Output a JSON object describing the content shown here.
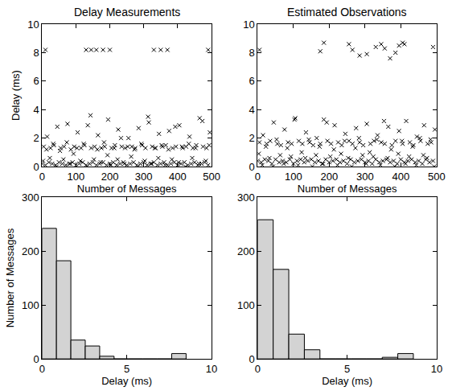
{
  "chart_data": [
    {
      "type": "scatter",
      "title": "Delay Measurements",
      "xlabel": "Number of Messages",
      "ylabel": "Delay (ms)",
      "x": [
        0,
        5,
        10,
        15,
        20,
        25,
        30,
        35,
        40,
        45,
        50,
        55,
        60,
        65,
        70,
        75,
        80,
        85,
        90,
        95,
        100,
        105,
        110,
        115,
        120,
        125,
        130,
        135,
        140,
        145,
        150,
        155,
        160,
        165,
        170,
        175,
        180,
        185,
        190,
        195,
        200,
        205,
        210,
        215,
        220,
        225,
        230,
        235,
        240,
        245,
        250,
        255,
        260,
        265,
        270,
        275,
        280,
        285,
        290,
        295,
        300,
        305,
        310,
        315,
        320,
        325,
        330,
        335,
        340,
        345,
        350,
        355,
        360,
        365,
        370,
        375,
        380,
        385,
        390,
        395,
        400,
        405,
        410,
        415,
        420,
        425,
        430,
        435,
        440,
        445,
        450,
        455,
        460,
        465,
        470,
        475,
        480,
        485,
        490,
        495,
        3,
        13,
        23,
        33,
        43,
        53,
        63,
        73,
        83,
        93,
        103,
        113,
        123,
        133,
        143,
        153,
        163,
        173,
        183,
        193,
        203,
        213,
        223,
        233,
        243,
        253,
        263,
        273,
        283,
        293,
        303,
        313,
        323,
        333,
        343,
        353,
        363,
        373,
        383,
        393,
        403,
        413,
        423,
        433,
        443,
        453,
        463,
        473,
        483,
        493,
        10,
        130,
        145,
        160,
        180,
        200,
        330,
        350,
        370,
        490
      ],
      "values": [
        0.2,
        1.4,
        0.1,
        2.1,
        0.3,
        1.3,
        0.2,
        1.5,
        0.1,
        2.8,
        0.3,
        1.3,
        0.2,
        1.4,
        0.1,
        3.0,
        0.2,
        1.2,
        0.3,
        1.4,
        0.1,
        2.4,
        0.2,
        1.3,
        0.3,
        1.5,
        0.1,
        2.9,
        0.2,
        1.3,
        0.3,
        1.4,
        0.1,
        2.2,
        0.2,
        1.3,
        0.3,
        1.4,
        0.1,
        3.3,
        0.2,
        1.3,
        0.3,
        1.5,
        0.1,
        2.6,
        0.2,
        1.4,
        0.3,
        1.3,
        0.1,
        2.0,
        0.2,
        1.4,
        0.3,
        1.3,
        0.1,
        2.7,
        0.2,
        1.5,
        0.3,
        1.3,
        0.1,
        3.1,
        0.2,
        1.4,
        0.3,
        1.3,
        0.1,
        2.3,
        0.2,
        1.4,
        0.3,
        1.5,
        0.1,
        2.5,
        0.2,
        1.3,
        0.3,
        1.4,
        0.1,
        2.9,
        0.2,
        1.3,
        0.3,
        1.4,
        0.1,
        2.1,
        0.2,
        1.3,
        0.3,
        1.5,
        0.1,
        3.4,
        0.2,
        1.4,
        0.3,
        1.3,
        0.1,
        2.4,
        0.4,
        1.2,
        0.6,
        1.6,
        0.0,
        1.1,
        0.5,
        1.7,
        0.2,
        0.9,
        1.3,
        0.4,
        1.6,
        0.0,
        3.6,
        0.5,
        1.2,
        0.3,
        1.7,
        0.8,
        0.1,
        1.3,
        0.5,
        2.0,
        0.2,
        1.4,
        0.7,
        1.2,
        0.0,
        1.6,
        0.4,
        3.5,
        0.2,
        1.3,
        0.6,
        1.5,
        0.1,
        1.2,
        0.5,
        2.8,
        0.3,
        1.4,
        0.0,
        1.6,
        0.6,
        1.3,
        0.2,
        3.2,
        0.4,
        1.5,
        8.2,
        8.2,
        8.2,
        8.2,
        8.2,
        8.2,
        8.2,
        8.2,
        8.2,
        8.2
      ],
      "xlim": [
        0,
        500
      ],
      "ylim": [
        0,
        10
      ],
      "xticks": [
        0,
        100,
        200,
        300,
        400,
        500
      ],
      "yticks": [
        0,
        2,
        4,
        6,
        8,
        10
      ],
      "marker": "x",
      "color": "#000000",
      "grid": false
    },
    {
      "type": "scatter",
      "title": "Estimated Observations",
      "xlabel": "Number of Messages",
      "x": [
        0,
        5,
        10,
        15,
        20,
        25,
        30,
        35,
        40,
        45,
        50,
        55,
        60,
        65,
        70,
        75,
        80,
        85,
        90,
        95,
        100,
        105,
        110,
        115,
        120,
        125,
        130,
        135,
        140,
        145,
        150,
        155,
        160,
        165,
        170,
        175,
        180,
        185,
        190,
        195,
        200,
        205,
        210,
        215,
        220,
        225,
        230,
        235,
        240,
        245,
        250,
        255,
        260,
        265,
        270,
        275,
        280,
        285,
        290,
        295,
        300,
        305,
        310,
        315,
        320,
        325,
        330,
        335,
        340,
        345,
        350,
        355,
        360,
        365,
        370,
        375,
        380,
        385,
        390,
        395,
        400,
        405,
        410,
        415,
        420,
        425,
        430,
        435,
        440,
        445,
        450,
        455,
        460,
        465,
        470,
        475,
        480,
        485,
        490,
        495,
        3,
        13,
        23,
        33,
        43,
        53,
        63,
        73,
        83,
        93,
        103,
        113,
        123,
        133,
        143,
        153,
        163,
        173,
        183,
        193,
        203,
        213,
        223,
        233,
        243,
        253,
        263,
        273,
        283,
        293,
        303,
        313,
        323,
        333,
        343,
        353,
        363,
        373,
        383,
        393,
        403,
        413,
        423,
        433,
        443,
        453,
        463,
        473,
        483,
        493,
        5,
        175,
        185,
        255,
        265,
        285,
        305,
        330,
        345,
        355,
        370,
        385,
        395,
        405,
        410,
        490
      ],
      "values": [
        0.4,
        1.7,
        0.3,
        2.2,
        0.5,
        1.6,
        0.4,
        1.8,
        0.2,
        3.1,
        0.5,
        1.6,
        0.3,
        1.5,
        0.4,
        2.6,
        0.3,
        1.7,
        0.5,
        1.6,
        0.2,
        3.4,
        0.4,
        1.8,
        0.5,
        1.6,
        0.3,
        2.4,
        0.4,
        1.7,
        0.5,
        1.5,
        0.3,
        2.0,
        0.4,
        1.6,
        0.2,
        3.3,
        0.5,
        1.8,
        0.3,
        1.6,
        0.4,
        2.9,
        0.5,
        1.7,
        0.3,
        1.5,
        0.4,
        2.3,
        0.2,
        1.8,
        0.5,
        1.6,
        0.3,
        2.7,
        0.4,
        1.7,
        0.5,
        1.5,
        0.3,
        3.0,
        0.4,
        1.6,
        0.2,
        1.8,
        0.5,
        2.2,
        0.3,
        1.7,
        0.4,
        1.6,
        0.5,
        2.8,
        0.3,
        1.5,
        0.4,
        1.8,
        0.2,
        2.5,
        0.5,
        1.6,
        0.3,
        3.2,
        0.4,
        1.7,
        0.5,
        1.5,
        0.3,
        2.1,
        0.4,
        1.8,
        0.2,
        2.9,
        0.5,
        1.6,
        0.3,
        1.7,
        0.4,
        2.6,
        0.9,
        0.1,
        1.4,
        0.6,
        0.0,
        1.9,
        0.8,
        0.2,
        1.3,
        0.7,
        3.3,
        0.1,
        1.0,
        0.6,
        1.9,
        0.0,
        0.8,
        1.4,
        0.2,
        3.1,
        0.7,
        1.2,
        0.1,
        0.9,
        1.8,
        0.6,
        0.0,
        1.3,
        2.0,
        0.8,
        0.2,
        1.0,
        0.7,
        1.9,
        0.1,
        3.2,
        0.6,
        1.2,
        0.0,
        0.9,
        1.8,
        0.2,
        0.7,
        1.4,
        0.1,
        2.0,
        0.8,
        0.6,
        1.9,
        0.0,
        8.2,
        8.1,
        8.7,
        8.6,
        8.2,
        7.8,
        7.9,
        8.4,
        8.6,
        8.3,
        7.6,
        8.0,
        8.5,
        8.7,
        8.6,
        8.4
      ],
      "xlim": [
        0,
        500
      ],
      "ylim": [
        0,
        10
      ],
      "xticks": [
        0,
        100,
        200,
        300,
        400,
        500
      ],
      "yticks": [
        0,
        2,
        4,
        6,
        8,
        10
      ],
      "marker": "x",
      "color": "#000000",
      "grid": false
    },
    {
      "type": "histogram",
      "xlabel": "Delay (ms)",
      "ylabel": "Number of Messages",
      "bins": [
        0,
        0.85,
        1.7,
        2.55,
        3.4,
        4.25,
        5.1,
        5.95,
        6.8,
        7.65,
        8.5
      ],
      "values": [
        242,
        182,
        35,
        24,
        5,
        0,
        0,
        0,
        0,
        10
      ],
      "xlim": [
        0,
        10
      ],
      "ylim": [
        0,
        300
      ],
      "xticks": [
        0,
        5,
        10
      ],
      "yticks": [
        0,
        100,
        200,
        300
      ],
      "color": "#d3d3d3",
      "grid": false
    },
    {
      "type": "histogram",
      "xlabel": "Delay (ms)",
      "bins": [
        0,
        0.87,
        1.74,
        2.61,
        3.48,
        4.35,
        5.22,
        6.09,
        6.96,
        7.83,
        8.7
      ],
      "values": [
        258,
        166,
        46,
        17,
        0,
        0,
        0,
        0,
        3,
        10
      ],
      "xlim": [
        0,
        10
      ],
      "ylim": [
        0,
        300
      ],
      "xticks": [
        0,
        5,
        10
      ],
      "yticks": [
        0,
        100,
        200,
        300
      ],
      "color": "#d3d3d3",
      "grid": false
    }
  ]
}
